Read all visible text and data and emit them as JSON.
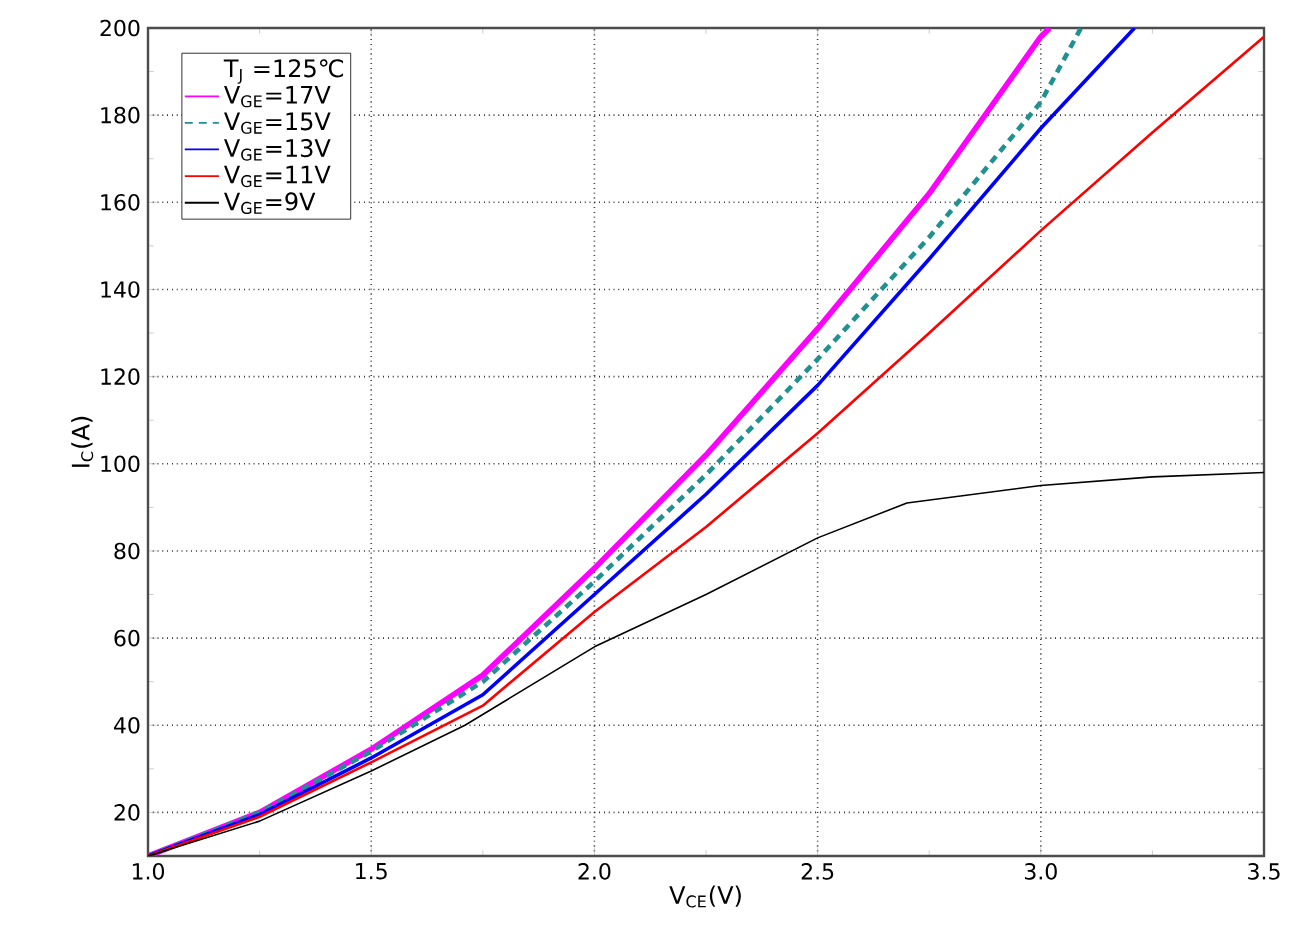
{
  "chart_data": {
    "type": "line",
    "xlabel": "V$_{CE}$(V)",
    "ylabel": "I$_{C}$(A)",
    "legend_title": "T$_{J}$ =125℃",
    "xlim": [
      1.0,
      3.5
    ],
    "ylim": [
      10,
      200
    ],
    "xticks": [
      {
        "value": 1.0,
        "label": "1.0"
      },
      {
        "value": 1.5,
        "label": "1.5"
      },
      {
        "value": 2.0,
        "label": "2.0"
      },
      {
        "value": 2.5,
        "label": "2.5"
      },
      {
        "value": 3.0,
        "label": "3.0"
      },
      {
        "value": 3.5,
        "label": "3.5"
      }
    ],
    "yticks": [
      20,
      40,
      60,
      80,
      100,
      120,
      140,
      160,
      180,
      200
    ],
    "grid": true,
    "legend": "top left",
    "marker": "none",
    "series": [
      {
        "name": "V$_{GE}$=17V",
        "color": "#ff00ff",
        "line_style": "solid",
        "x": [
          1.0,
          1.25,
          1.5,
          1.75,
          2.0,
          2.25,
          2.5,
          2.75,
          3.0,
          3.02
        ],
        "values": [
          10,
          20,
          34.5,
          51.5,
          76,
          102,
          131,
          162,
          198,
          200
        ]
      },
      {
        "name": "V$_{GE}$=15V",
        "color": "#209090",
        "line_style": "dashed",
        "x": [
          1.0,
          1.25,
          1.5,
          1.75,
          2.0,
          2.25,
          2.5,
          2.75,
          3.0,
          3.09
        ],
        "values": [
          10,
          20,
          34,
          50,
          73,
          97.5,
          124,
          152,
          183,
          200
        ]
      },
      {
        "name": "V$_{GE}$=13V",
        "color": "#0000ff",
        "line_style": "solid",
        "x": [
          1.0,
          1.25,
          1.5,
          1.75,
          2.0,
          2.25,
          2.5,
          2.75,
          3.0,
          3.21
        ],
        "values": [
          10,
          19.5,
          32.5,
          47,
          70,
          93,
          118,
          147,
          177,
          200
        ]
      },
      {
        "name": "V$_{GE}$=11V",
        "color": "#ff0000",
        "line_style": "solid",
        "x": [
          1.0,
          1.25,
          1.5,
          1.75,
          2.0,
          2.25,
          2.5,
          2.75,
          3.0,
          3.25,
          3.5
        ],
        "values": [
          10,
          19,
          31.5,
          44.5,
          66,
          85.5,
          107,
          130,
          153.5,
          176,
          198
        ]
      },
      {
        "name": "V$_{GE}$=9V",
        "color": "#000000",
        "line_style": "solid",
        "x": [
          1.0,
          1.25,
          1.5,
          1.71,
          2.0,
          2.25,
          2.5,
          2.7,
          3.0,
          3.25,
          3.5
        ],
        "values": [
          10,
          18,
          29.5,
          40,
          58,
          70,
          83,
          91,
          95,
          97,
          98
        ]
      }
    ]
  }
}
